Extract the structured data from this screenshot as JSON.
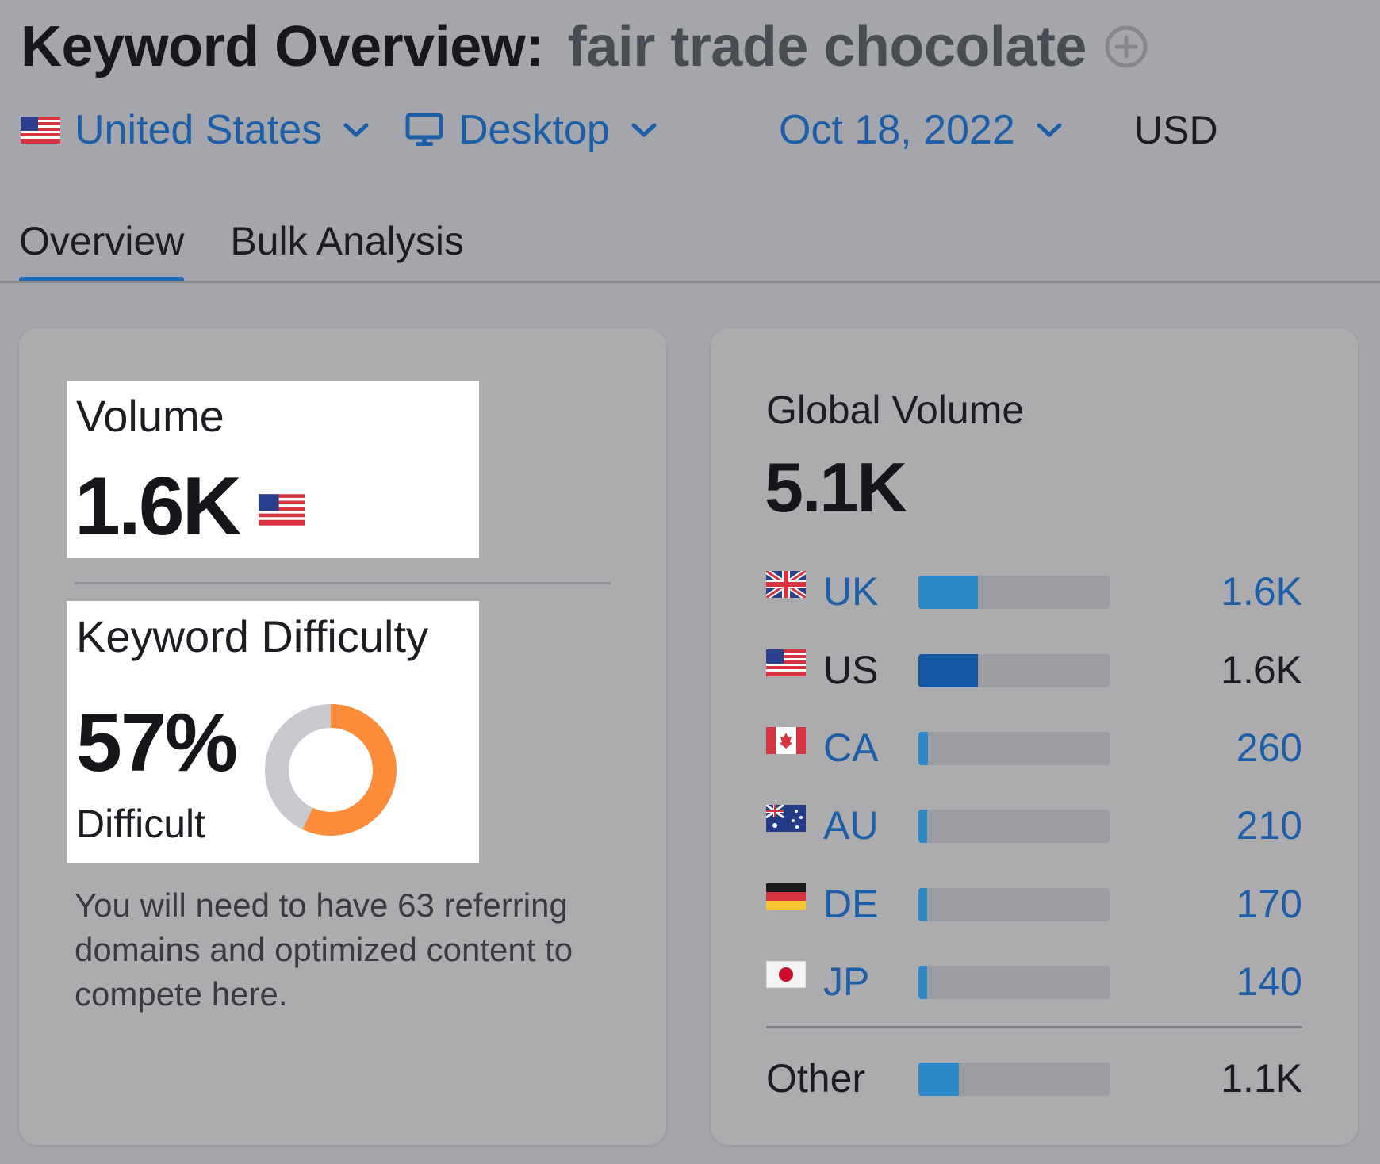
{
  "header": {
    "title": "Keyword Overview:",
    "keyword": "fair trade chocolate"
  },
  "filters": {
    "country": "United States",
    "device": "Desktop",
    "date": "Oct 18, 2022",
    "currency": "USD"
  },
  "tabs": [
    {
      "label": "Overview",
      "active": true
    },
    {
      "label": "Bulk Analysis",
      "active": false
    }
  ],
  "volume": {
    "label": "Volume",
    "value": "1.6K"
  },
  "keyword_difficulty": {
    "label": "Keyword Difficulty",
    "value": "57%",
    "percent": 57,
    "level": "Difficult",
    "note": "You will need to have 63 referring domains and optimized content to compete here."
  },
  "global_volume": {
    "label": "Global Volume",
    "value": "5.1K",
    "countries": [
      {
        "code": "UK",
        "value": "1.6K",
        "share": 0.31,
        "highlight": false
      },
      {
        "code": "US",
        "value": "1.6K",
        "share": 0.31,
        "highlight": true
      },
      {
        "code": "CA",
        "value": "260",
        "share": 0.05,
        "highlight": false
      },
      {
        "code": "AU",
        "value": "210",
        "share": 0.04,
        "highlight": false
      },
      {
        "code": "DE",
        "value": "170",
        "share": 0.035,
        "highlight": false
      },
      {
        "code": "JP",
        "value": "140",
        "share": 0.03,
        "highlight": false
      }
    ],
    "other": {
      "label": "Other",
      "value": "1.1K",
      "share": 0.21
    }
  },
  "colors": {
    "accent_blue": "#1c5fa8",
    "bar_fill": "#2b89c8",
    "bar_fill_selected": "#1356a2",
    "difficulty_orange": "#fd8c3a"
  }
}
